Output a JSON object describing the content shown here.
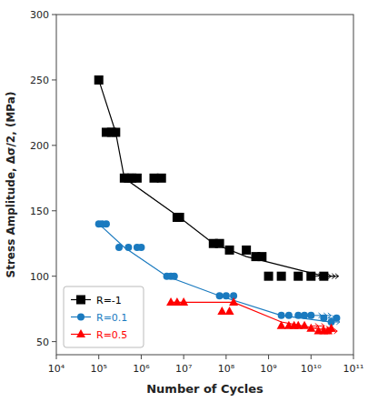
{
  "chart_data": {
    "type": "scatter",
    "xlabel": "Number of Cycles",
    "ylabel": "Stress Amplitude, Δσ/2, (MPa)",
    "log": "x",
    "xlim": [
      10000,
      100000000000
    ],
    "xticks": [
      {
        "value": 10000,
        "label": "10⁴"
      },
      {
        "value": 100000,
        "label": "10⁵"
      },
      {
        "value": 1000000,
        "label": "10⁶"
      },
      {
        "value": 10000000,
        "label": "10⁷"
      },
      {
        "value": 100000000,
        "label": "10⁸"
      },
      {
        "value": 1000000000,
        "label": "10⁹"
      },
      {
        "value": 10000000000,
        "label": "10¹⁰"
      },
      {
        "value": 100000000000,
        "label": "10¹¹"
      }
    ],
    "ylim": [
      40,
      300
    ],
    "yticks": [
      50,
      100,
      150,
      200,
      250,
      300
    ],
    "grid": false,
    "legend": "lower left",
    "series": [
      {
        "name": "R=-1",
        "color": "black",
        "marker": "square",
        "x": [
          100000.0,
          150000.0,
          200000.0,
          250000.0,
          400000.0,
          500000.0,
          600000.0,
          800000.0,
          2000000.0,
          3000000.0,
          7000000.0,
          8000000.0,
          50000000.0,
          70000000.0,
          120000000.0,
          300000000.0,
          500000000.0,
          700000000.0,
          1000000000.0,
          2000000000.0,
          5000000000.0,
          10000000000.0,
          20000000000.0
        ],
        "values": [
          250,
          210,
          210,
          210,
          175,
          175,
          175,
          175,
          175,
          175,
          145,
          145,
          125,
          125,
          120,
          120,
          115,
          115,
          100,
          100,
          100,
          100,
          100
        ],
        "line_x": [
          100000.0,
          250000.0,
          400000.0,
          8000000.0,
          50000000.0,
          300000000.0,
          20000000000.0
        ],
        "line_values": [
          250,
          210,
          175,
          145,
          125,
          115,
          100
        ],
        "runout_x": [
          12000000000.0,
          16000000000.0,
          20000000000.0,
          25000000000.0,
          30000000000.0
        ],
        "runout_values": [
          100,
          100,
          100,
          100,
          100
        ]
      },
      {
        "name": "R=0.1",
        "color": "#1a7abf",
        "marker": "circle",
        "x": [
          100000.0,
          120000.0,
          150000.0,
          300000.0,
          500000.0,
          800000.0,
          1000000.0,
          4000000.0,
          5000000.0,
          6000000.0,
          70000000.0,
          100000000.0,
          150000000.0,
          2000000000.0,
          3000000000.0,
          5000000000.0,
          7000000000.0,
          10000000000.0,
          20000000000.0,
          30000000000.0,
          40000000000.0
        ],
        "values": [
          140,
          140,
          140,
          122,
          122,
          122,
          122,
          100,
          100,
          100,
          85,
          85,
          85,
          70,
          70,
          70,
          70,
          70,
          68,
          65,
          68
        ],
        "line_x": [
          100000.0,
          400000.0,
          4000000.0,
          70000000.0,
          2000000000.0,
          30000000000.0
        ],
        "line_values": [
          140,
          122,
          100,
          85,
          70,
          65
        ],
        "runout_x": [
          12000000000.0,
          16000000000.0,
          20000000000.0,
          25000000000.0,
          32000000000.0
        ],
        "runout_values": [
          70,
          70,
          70,
          68,
          65
        ]
      },
      {
        "name": "R=0.5",
        "color": "red",
        "marker": "triangle",
        "x": [
          5000000.0,
          7000000.0,
          10000000.0,
          80000000.0,
          120000000.0,
          150000000.0,
          2000000000.0,
          3000000000.0,
          4000000000.0,
          5000000000.0,
          7000000000.0,
          10000000000.0,
          15000000000.0,
          20000000000.0,
          25000000000.0,
          30000000000.0
        ],
        "values": [
          80,
          80,
          80,
          73,
          73,
          80,
          62,
          62,
          62,
          62,
          62,
          60,
          58,
          58,
          58,
          60
        ],
        "line_x": [
          5000000.0,
          150000000.0,
          2000000000.0,
          30000000000.0
        ],
        "line_values": [
          80,
          80,
          65,
          58
        ],
        "runout_x": [
          10000000000.0,
          14000000000.0,
          18000000000.0,
          22000000000.0,
          28000000000.0
        ],
        "runout_values": [
          62,
          62,
          60,
          58,
          58
        ]
      }
    ]
  }
}
